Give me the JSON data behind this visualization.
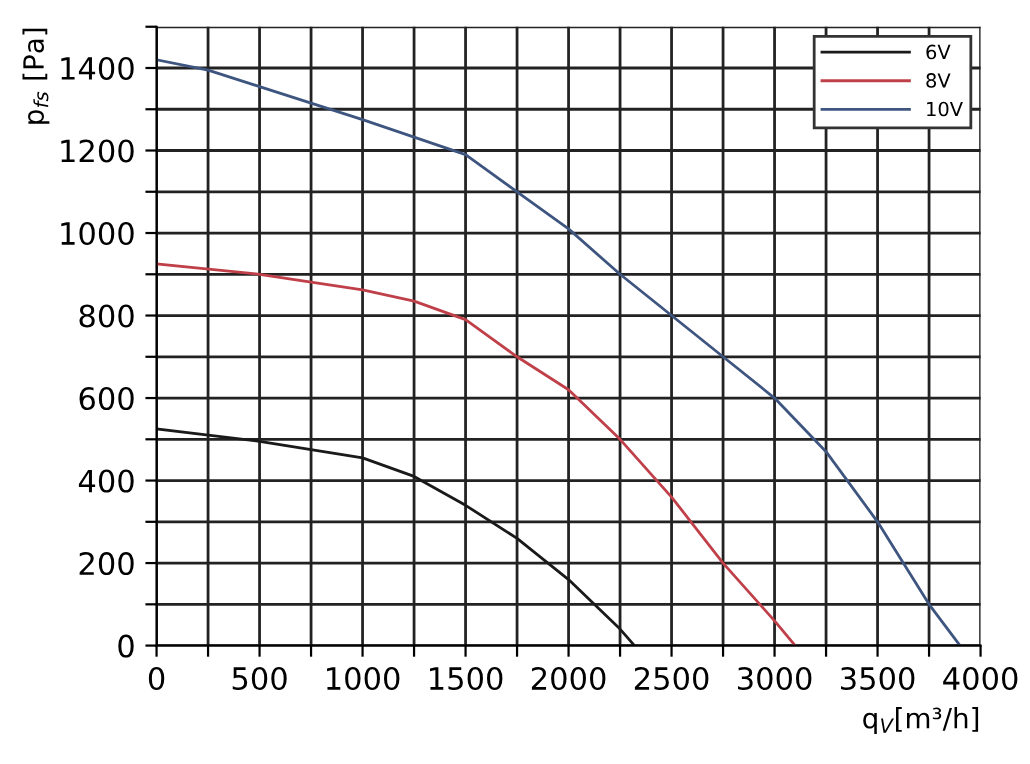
{
  "chart_data": {
    "type": "line",
    "xlabel": "q$_{V}$[m³/h]",
    "ylabel": "p$_{fs}$ [Pa]",
    "xlim": [
      0,
      4000
    ],
    "ylim": [
      0,
      1500
    ],
    "xticks": [
      0,
      {
        "value": 250,
        "label": null
      },
      500,
      {
        "value": 750,
        "label": null
      },
      1000,
      {
        "value": 1250,
        "label": null
      },
      1500,
      {
        "value": 1750,
        "label": null
      },
      2000,
      {
        "value": 2250,
        "label": null
      },
      2500,
      {
        "value": 2750,
        "label": null
      },
      3000,
      {
        "value": 3250,
        "label": null
      },
      3500,
      {
        "value": 3750,
        "label": null
      },
      4000
    ],
    "yticks": [
      0,
      {
        "value": 100,
        "label": null
      },
      200,
      {
        "value": 300,
        "label": null
      },
      400,
      {
        "value": 500,
        "label": null
      },
      600,
      {
        "value": 700,
        "label": null
      },
      800,
      {
        "value": 900,
        "label": null
      },
      1000,
      {
        "value": 1100,
        "label": null
      },
      1200,
      {
        "value": 1300,
        "label": null
      },
      1400,
      {
        "value": 1500,
        "label": null
      }
    ],
    "grid": true,
    "legend": "top right",
    "marker": "none",
    "line_style": "solid",
    "series": [
      {
        "name": "6V",
        "color": "#1a1a1a",
        "x": [
          0,
          500,
          1000,
          1250,
          1500,
          1750,
          2000,
          2250,
          2320
        ],
        "values": [
          525,
          495,
          455,
          410,
          340,
          260,
          160,
          40,
          0
        ]
      },
      {
        "name": "8V",
        "color": "#c0404a",
        "x": [
          0,
          500,
          1000,
          1250,
          1500,
          1750,
          2000,
          2250,
          2500,
          2750,
          3000,
          3100
        ],
        "values": [
          925,
          900,
          862,
          835,
          790,
          700,
          620,
          500,
          360,
          200,
          60,
          0
        ]
      },
      {
        "name": "10V",
        "color": "#3e5580",
        "x": [
          0,
          250,
          500,
          1000,
          1500,
          1750,
          2000,
          2250,
          2500,
          2750,
          3000,
          3250,
          3500,
          3750,
          3900
        ],
        "values": [
          1420,
          1395,
          1355,
          1275,
          1190,
          1100,
          1010,
          900,
          800,
          700,
          600,
          470,
          300,
          100,
          0
        ]
      }
    ]
  }
}
